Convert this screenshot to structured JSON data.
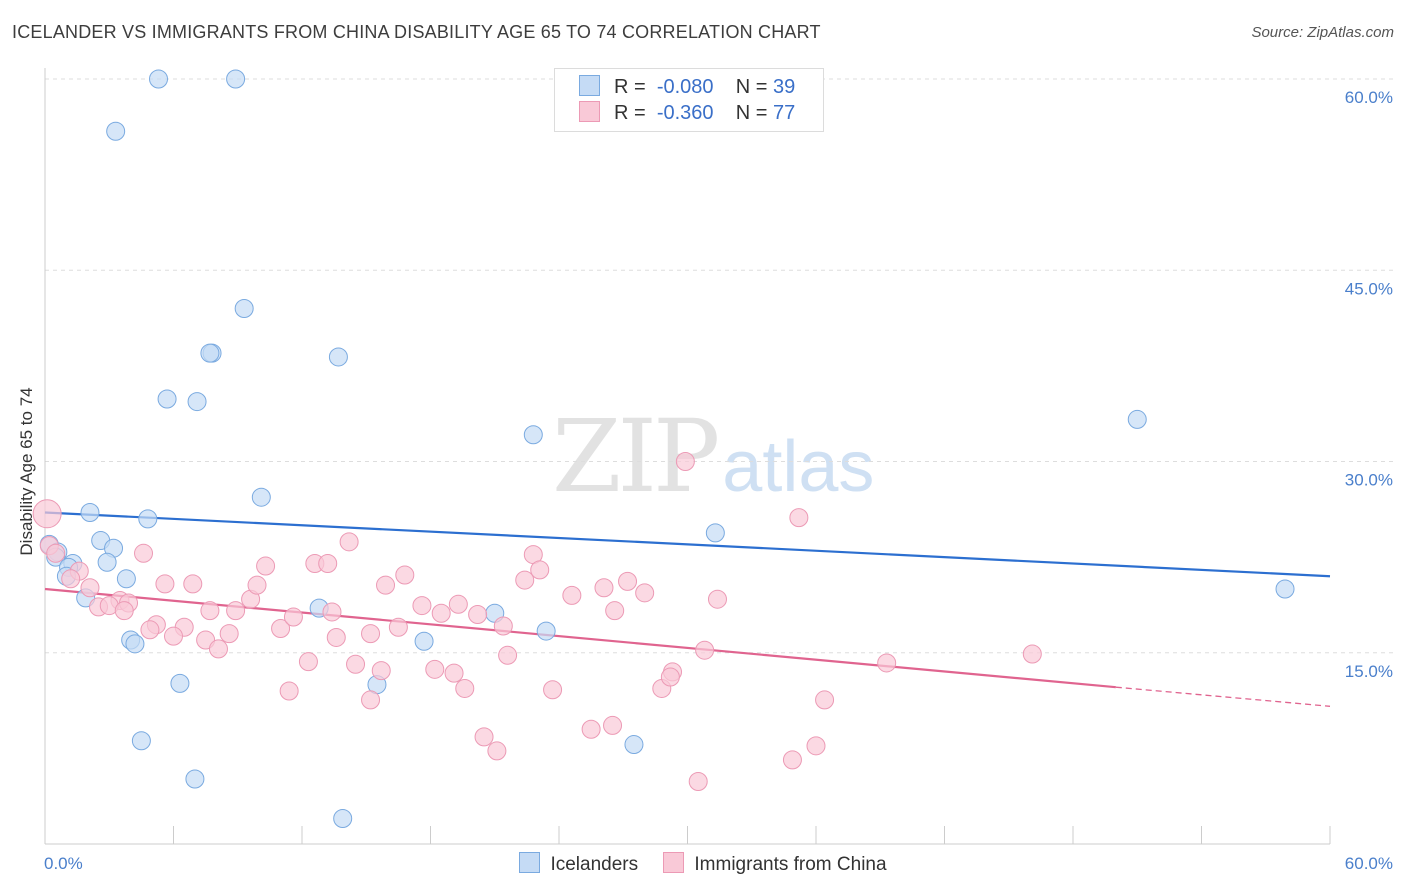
{
  "title": "ICELANDER VS IMMIGRANTS FROM CHINA DISABILITY AGE 65 TO 74 CORRELATION CHART",
  "source": "Source: ZipAtlas.com",
  "watermark": {
    "zip": "ZIP",
    "atlas": "atlas"
  },
  "legend": {
    "icelanders": {
      "r_label": "R =",
      "r_value": "-0.080",
      "n_label": "N =",
      "n_value": "39"
    },
    "china": {
      "r_label": "R =",
      "r_value": "-0.360",
      "n_label": "N =",
      "n_value": "77"
    }
  },
  "bottom_legend": {
    "icelanders": "Icelanders",
    "china": "Immigrants from China"
  },
  "colors": {
    "blue_fill": "#c5dbf5",
    "blue_stroke": "#7aaae0",
    "blue_line": "#2c6fd0",
    "pink_fill": "#f9c9d7",
    "pink_stroke": "#ec9ab5",
    "pink_line": "#e0648f",
    "tick_text": "#4a7fcb"
  },
  "chart_data": {
    "type": "scatter",
    "title": "ICELANDER VS IMMIGRANTS FROM CHINA DISABILITY AGE 65 TO 74 CORRELATION CHART",
    "xlabel": "",
    "ylabel": "Disability Age 65 to 74",
    "xlim": [
      0,
      60
    ],
    "ylim": [
      0,
      60
    ],
    "x_tick_labels": [
      "0.0%",
      "60.0%"
    ],
    "y_ticks": [
      15,
      30,
      45,
      60
    ],
    "y_tick_labels": [
      "15.0%",
      "30.0%",
      "45.0%",
      "60.0%"
    ],
    "series": [
      {
        "name": "Icelanders",
        "r": -0.08,
        "n": 39,
        "trend": {
          "x": [
            0,
            60
          ],
          "y": [
            26.0,
            21.0
          ]
        },
        "points": [
          [
            5.3,
            60
          ],
          [
            8.9,
            60
          ],
          [
            3.3,
            55.9
          ],
          [
            9.3,
            42
          ],
          [
            7.8,
            38.5
          ],
          [
            7.7,
            38.5
          ],
          [
            13.7,
            38.2
          ],
          [
            5.7,
            34.9
          ],
          [
            7.1,
            34.7
          ],
          [
            51,
            33.3
          ],
          [
            22.8,
            32.1
          ],
          [
            10.1,
            27.2
          ],
          [
            2.1,
            26
          ],
          [
            4.8,
            25.5
          ],
          [
            31.3,
            24.4
          ],
          [
            0.2,
            23.5
          ],
          [
            0.6,
            22.9
          ],
          [
            0.5,
            22.5
          ],
          [
            2.6,
            23.8
          ],
          [
            3.2,
            23.2
          ],
          [
            2.9,
            22.1
          ],
          [
            1.3,
            22.0
          ],
          [
            1.1,
            21.7
          ],
          [
            1.0,
            21.0
          ],
          [
            3.8,
            20.8
          ],
          [
            57.9,
            20.0
          ],
          [
            1.9,
            19.3
          ],
          [
            12.8,
            18.5
          ],
          [
            21.0,
            18.1
          ],
          [
            23.4,
            16.7
          ],
          [
            17.7,
            15.9
          ],
          [
            4.0,
            16.0
          ],
          [
            4.2,
            15.7
          ],
          [
            6.3,
            12.6
          ],
          [
            15.5,
            12.5
          ],
          [
            4.5,
            8.1
          ],
          [
            27.5,
            7.8
          ],
          [
            7.0,
            5.1
          ],
          [
            13.9,
            2.0
          ]
        ]
      },
      {
        "name": "Immigrants from China",
        "r": -0.36,
        "n": 77,
        "trend": {
          "x": [
            0,
            50
          ],
          "y": [
            20.0,
            12.3
          ]
        },
        "trend_dashed": {
          "x": [
            50,
            60
          ],
          "y": [
            12.3,
            10.8
          ]
        },
        "points": [
          [
            0.1,
            25.9
          ],
          [
            0.2,
            23.4
          ],
          [
            0.5,
            22.8
          ],
          [
            4.6,
            22.8
          ],
          [
            1.6,
            21.4
          ],
          [
            1.2,
            20.8
          ],
          [
            2.1,
            20.1
          ],
          [
            5.6,
            20.4
          ],
          [
            6.9,
            20.4
          ],
          [
            3.5,
            19.1
          ],
          [
            2.5,
            18.6
          ],
          [
            3.9,
            18.9
          ],
          [
            3.0,
            18.7
          ],
          [
            3.7,
            18.3
          ],
          [
            5.2,
            17.2
          ],
          [
            4.9,
            16.8
          ],
          [
            6.5,
            17.0
          ],
          [
            6.0,
            16.3
          ],
          [
            7.5,
            16.0
          ],
          [
            8.1,
            15.3
          ],
          [
            8.6,
            16.5
          ],
          [
            7.7,
            18.3
          ],
          [
            8.9,
            18.3
          ],
          [
            9.6,
            19.2
          ],
          [
            9.9,
            20.3
          ],
          [
            10.3,
            21.8
          ],
          [
            11.0,
            16.9
          ],
          [
            11.4,
            12.0
          ],
          [
            11.6,
            17.8
          ],
          [
            12.3,
            14.3
          ],
          [
            12.6,
            22.0
          ],
          [
            13.2,
            22.0
          ],
          [
            13.4,
            18.2
          ],
          [
            13.6,
            16.2
          ],
          [
            14.2,
            23.7
          ],
          [
            15.2,
            11.3
          ],
          [
            14.5,
            14.1
          ],
          [
            15.2,
            16.5
          ],
          [
            15.7,
            13.6
          ],
          [
            15.9,
            20.3
          ],
          [
            16.5,
            17.0
          ],
          [
            16.8,
            21.1
          ],
          [
            17.6,
            18.7
          ],
          [
            18.2,
            13.7
          ],
          [
            18.5,
            18.1
          ],
          [
            19.1,
            13.4
          ],
          [
            19.3,
            18.8
          ],
          [
            19.6,
            12.2
          ],
          [
            20.2,
            18.0
          ],
          [
            20.5,
            8.4
          ],
          [
            21.1,
            7.3
          ],
          [
            21.4,
            17.1
          ],
          [
            21.6,
            14.8
          ],
          [
            22.4,
            20.7
          ],
          [
            22.8,
            22.7
          ],
          [
            23.1,
            21.5
          ],
          [
            23.7,
            12.1
          ],
          [
            24.6,
            19.5
          ],
          [
            25.5,
            9.0
          ],
          [
            26.1,
            20.1
          ],
          [
            26.6,
            18.3
          ],
          [
            27.2,
            20.6
          ],
          [
            28.0,
            19.7
          ],
          [
            28.8,
            12.2
          ],
          [
            29.3,
            13.5
          ],
          [
            29.2,
            13.1
          ],
          [
            29.9,
            30.0
          ],
          [
            30.5,
            4.9
          ],
          [
            30.8,
            15.2
          ],
          [
            31.4,
            19.2
          ],
          [
            34.9,
            6.6
          ],
          [
            35.2,
            25.6
          ],
          [
            36.0,
            7.7
          ],
          [
            36.4,
            11.3
          ],
          [
            39.3,
            14.2
          ],
          [
            46.1,
            14.9
          ],
          [
            26.5,
            9.3
          ]
        ]
      }
    ]
  }
}
